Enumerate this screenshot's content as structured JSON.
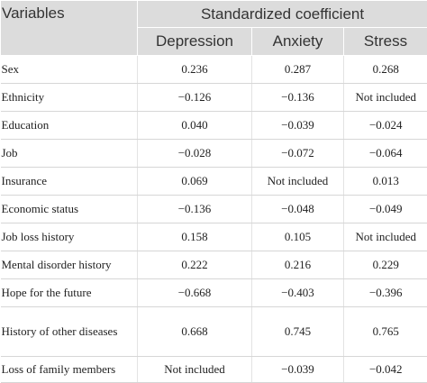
{
  "header": {
    "variables_label": "Variables",
    "group_label": "Standardized coefficient",
    "columns": [
      "Depression",
      "Anxiety",
      "Stress"
    ]
  },
  "rows": [
    {
      "variable": "Sex",
      "values": [
        "0.236",
        "0.287",
        "0.268"
      ]
    },
    {
      "variable": "Ethnicity",
      "values": [
        "−0.126",
        "−0.136",
        "Not included"
      ]
    },
    {
      "variable": "Education",
      "values": [
        "0.040",
        "−0.039",
        "−0.024"
      ]
    },
    {
      "variable": "Job",
      "values": [
        "−0.028",
        "−0.072",
        "−0.064"
      ]
    },
    {
      "variable": "Insurance",
      "values": [
        "0.069",
        "Not included",
        "0.013"
      ]
    },
    {
      "variable": "Economic status",
      "values": [
        "−0.136",
        "−0.048",
        "−0.049"
      ]
    },
    {
      "variable": "Job loss history",
      "values": [
        "0.158",
        "0.105",
        "Not included"
      ]
    },
    {
      "variable": "Mental disorder history",
      "values": [
        "0.222",
        "0.216",
        "0.229"
      ]
    },
    {
      "variable": "Hope for the future",
      "values": [
        "−0.668",
        "−0.403",
        "−0.396"
      ]
    },
    {
      "variable": "History of other diseases",
      "values": [
        "0.668",
        "0.745",
        "0.765"
      ]
    },
    {
      "variable": "Loss of family members",
      "values": [
        "Not included",
        "−0.039",
        "−0.042"
      ]
    }
  ]
}
